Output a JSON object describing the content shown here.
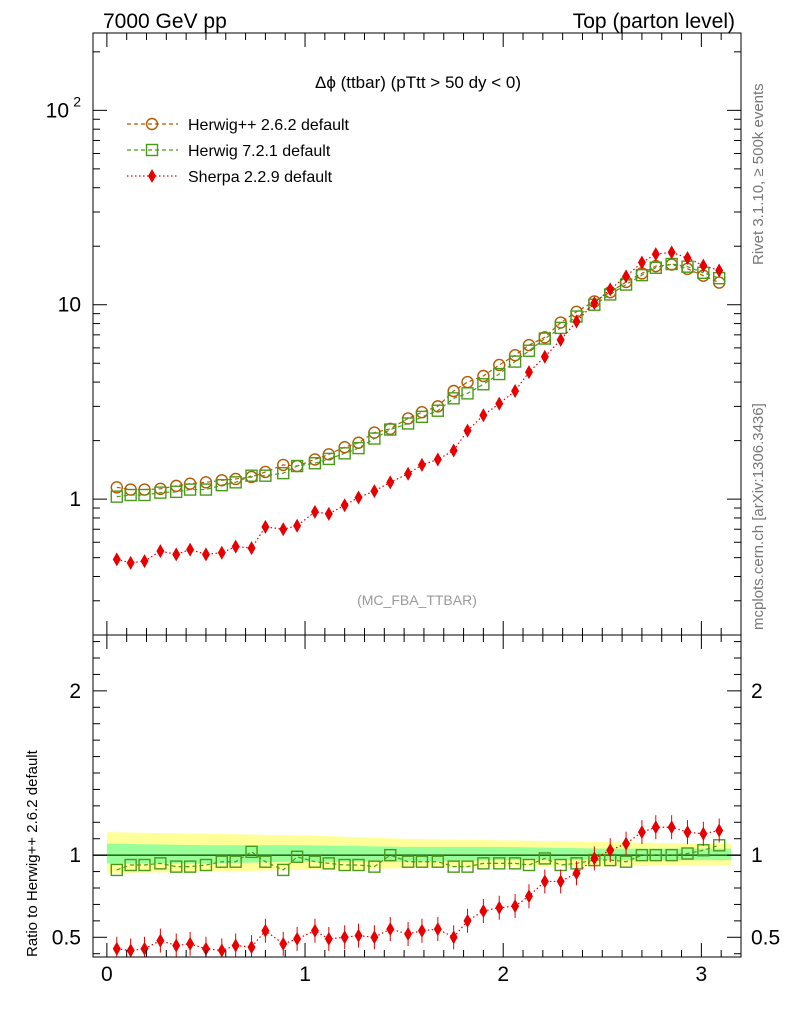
{
  "header": {
    "left": "7000 GeV pp",
    "right": "Top (parton level)"
  },
  "side_labels": {
    "right_top": "Rivet 3.1.10, ≥ 500k events",
    "right_bottom": "mcplots.cern.ch [arXiv:1306.3436]"
  },
  "colors": {
    "herwigpp": "#b35900",
    "herwig7": "#4a9a1a",
    "sherpa": "#e60000",
    "band_yellow": "#ffff99",
    "band_green": "#99ff99",
    "ratio_line": "#2b6b1f"
  },
  "chart_data": [
    {
      "type": "line",
      "title": "Δϕ (ttbar) (pTtt > 50 dy < 0)",
      "watermark": "(MC_FBA_TTBAR)",
      "yscale": "log",
      "ylim": [
        0.2,
        250
      ],
      "xlim": [
        -0.07,
        3.2
      ],
      "yticks": [
        {
          "value": 1,
          "label": "1"
        },
        {
          "value": 10,
          "label": "10"
        },
        {
          "value": 100,
          "label": "10",
          "sup": "2"
        }
      ],
      "legend_position": "top-left",
      "x": [
        0.05,
        0.12,
        0.19,
        0.27,
        0.35,
        0.42,
        0.5,
        0.58,
        0.65,
        0.73,
        0.8,
        0.89,
        0.96,
        1.05,
        1.12,
        1.2,
        1.27,
        1.35,
        1.43,
        1.52,
        1.59,
        1.67,
        1.75,
        1.82,
        1.9,
        1.98,
        2.06,
        2.13,
        2.21,
        2.29,
        2.37,
        2.46,
        2.54,
        2.62,
        2.7,
        2.77,
        2.85,
        2.93,
        3.01,
        3.09
      ],
      "series": [
        {
          "name": "Herwig++ 2.6.2 default",
          "marker": "circle",
          "line": "dashed",
          "color_key": "herwigpp",
          "values": [
            1.15,
            1.12,
            1.12,
            1.13,
            1.17,
            1.2,
            1.22,
            1.25,
            1.27,
            1.3,
            1.38,
            1.5,
            1.48,
            1.6,
            1.7,
            1.85,
            1.95,
            2.2,
            2.3,
            2.6,
            2.8,
            3.0,
            3.6,
            4.0,
            4.3,
            4.9,
            5.5,
            6.2,
            6.8,
            8.1,
            9.2,
            10.4,
            11.6,
            13.1,
            14.5,
            15.8,
            16.1,
            15.3,
            14.1,
            13.0
          ]
        },
        {
          "name": "Herwig 7.2.1 default",
          "marker": "square",
          "line": "dashed",
          "color_key": "herwig7",
          "values": [
            1.03,
            1.05,
            1.05,
            1.08,
            1.09,
            1.12,
            1.12,
            1.18,
            1.22,
            1.32,
            1.32,
            1.36,
            1.48,
            1.53,
            1.61,
            1.72,
            1.83,
            2.05,
            2.28,
            2.45,
            2.65,
            2.85,
            3.3,
            3.5,
            3.9,
            4.4,
            5.1,
            5.8,
            6.7,
            7.6,
            8.7,
            10.0,
            11.3,
            12.7,
            14.2,
            15.5,
            16.2,
            15.7,
            14.6,
            13.7
          ]
        },
        {
          "name": "Sherpa 2.2.9 default",
          "marker": "diamond",
          "line": "dotted",
          "color_key": "sherpa",
          "values": [
            0.49,
            0.47,
            0.48,
            0.54,
            0.52,
            0.55,
            0.52,
            0.53,
            0.57,
            0.56,
            0.72,
            0.7,
            0.73,
            0.86,
            0.84,
            0.93,
            1.02,
            1.1,
            1.22,
            1.35,
            1.5,
            1.6,
            1.78,
            2.25,
            2.7,
            3.1,
            3.6,
            4.5,
            5.4,
            6.6,
            8.2,
            10.2,
            12.0,
            14.0,
            16.5,
            18.2,
            18.6,
            17.4,
            15.9,
            15.0
          ]
        }
      ]
    },
    {
      "type": "line",
      "ylabel": "Ratio to Herwig++ 2.6.2 default",
      "ylim": [
        0.38,
        2.34
      ],
      "xlim": [
        -0.07,
        3.2
      ],
      "yticks": [
        {
          "value": 0.5,
          "label": "0.5"
        },
        {
          "value": 1,
          "label": "1"
        },
        {
          "value": 2,
          "label": "2"
        }
      ],
      "xticks": [
        {
          "value": 0,
          "label": "0"
        },
        {
          "value": 1,
          "label": "1"
        },
        {
          "value": 2,
          "label": "2"
        },
        {
          "value": 3,
          "label": "3"
        }
      ],
      "reference_line": 1,
      "x": [
        0.05,
        0.12,
        0.19,
        0.27,
        0.35,
        0.42,
        0.5,
        0.58,
        0.65,
        0.73,
        0.8,
        0.89,
        0.96,
        1.05,
        1.12,
        1.2,
        1.27,
        1.35,
        1.43,
        1.52,
        1.59,
        1.67,
        1.75,
        1.82,
        1.9,
        1.98,
        2.06,
        2.13,
        2.21,
        2.29,
        2.37,
        2.46,
        2.54,
        2.62,
        2.7,
        2.77,
        2.85,
        2.93,
        3.01,
        3.09
      ],
      "band_x": [
        0.0,
        0.5,
        1.0,
        1.5,
        2.0,
        2.5,
        3.0,
        3.15
      ],
      "band_yellow_high": [
        1.14,
        1.13,
        1.12,
        1.1,
        1.09,
        1.08,
        1.07,
        1.07
      ],
      "band_yellow_low": [
        0.89,
        0.9,
        0.91,
        0.92,
        0.93,
        0.93,
        0.94,
        0.94
      ],
      "band_green_high": [
        1.07,
        1.06,
        1.06,
        1.05,
        1.05,
        1.04,
        1.04,
        1.04
      ],
      "band_green_low": [
        0.95,
        0.95,
        0.96,
        0.96,
        0.97,
        0.97,
        0.97,
        0.97
      ],
      "series": [
        {
          "name": "Herwig 7.2.1 default",
          "marker": "square",
          "line": "dashed",
          "color_key": "herwig7",
          "values": [
            0.91,
            0.94,
            0.94,
            0.95,
            0.93,
            0.93,
            0.94,
            0.96,
            0.96,
            1.02,
            0.96,
            0.91,
            0.99,
            0.96,
            0.95,
            0.94,
            0.94,
            0.93,
            1.0,
            0.96,
            0.96,
            0.96,
            0.93,
            0.93,
            0.95,
            0.95,
            0.95,
            0.94,
            0.98,
            0.94,
            0.95,
            0.97,
            0.97,
            0.96,
            1.0,
            1.0,
            1.0,
            1.01,
            1.03,
            1.06
          ]
        },
        {
          "name": "Sherpa 2.2.9 default",
          "marker": "diamond",
          "line": "dotted",
          "color_key": "sherpa",
          "values": [
            0.43,
            0.42,
            0.43,
            0.48,
            0.45,
            0.46,
            0.43,
            0.42,
            0.45,
            0.44,
            0.54,
            0.46,
            0.49,
            0.54,
            0.49,
            0.5,
            0.51,
            0.5,
            0.55,
            0.52,
            0.54,
            0.55,
            0.5,
            0.6,
            0.66,
            0.68,
            0.69,
            0.75,
            0.84,
            0.84,
            0.89,
            0.98,
            1.03,
            1.07,
            1.14,
            1.17,
            1.17,
            1.14,
            1.13,
            1.15
          ]
        }
      ]
    }
  ]
}
